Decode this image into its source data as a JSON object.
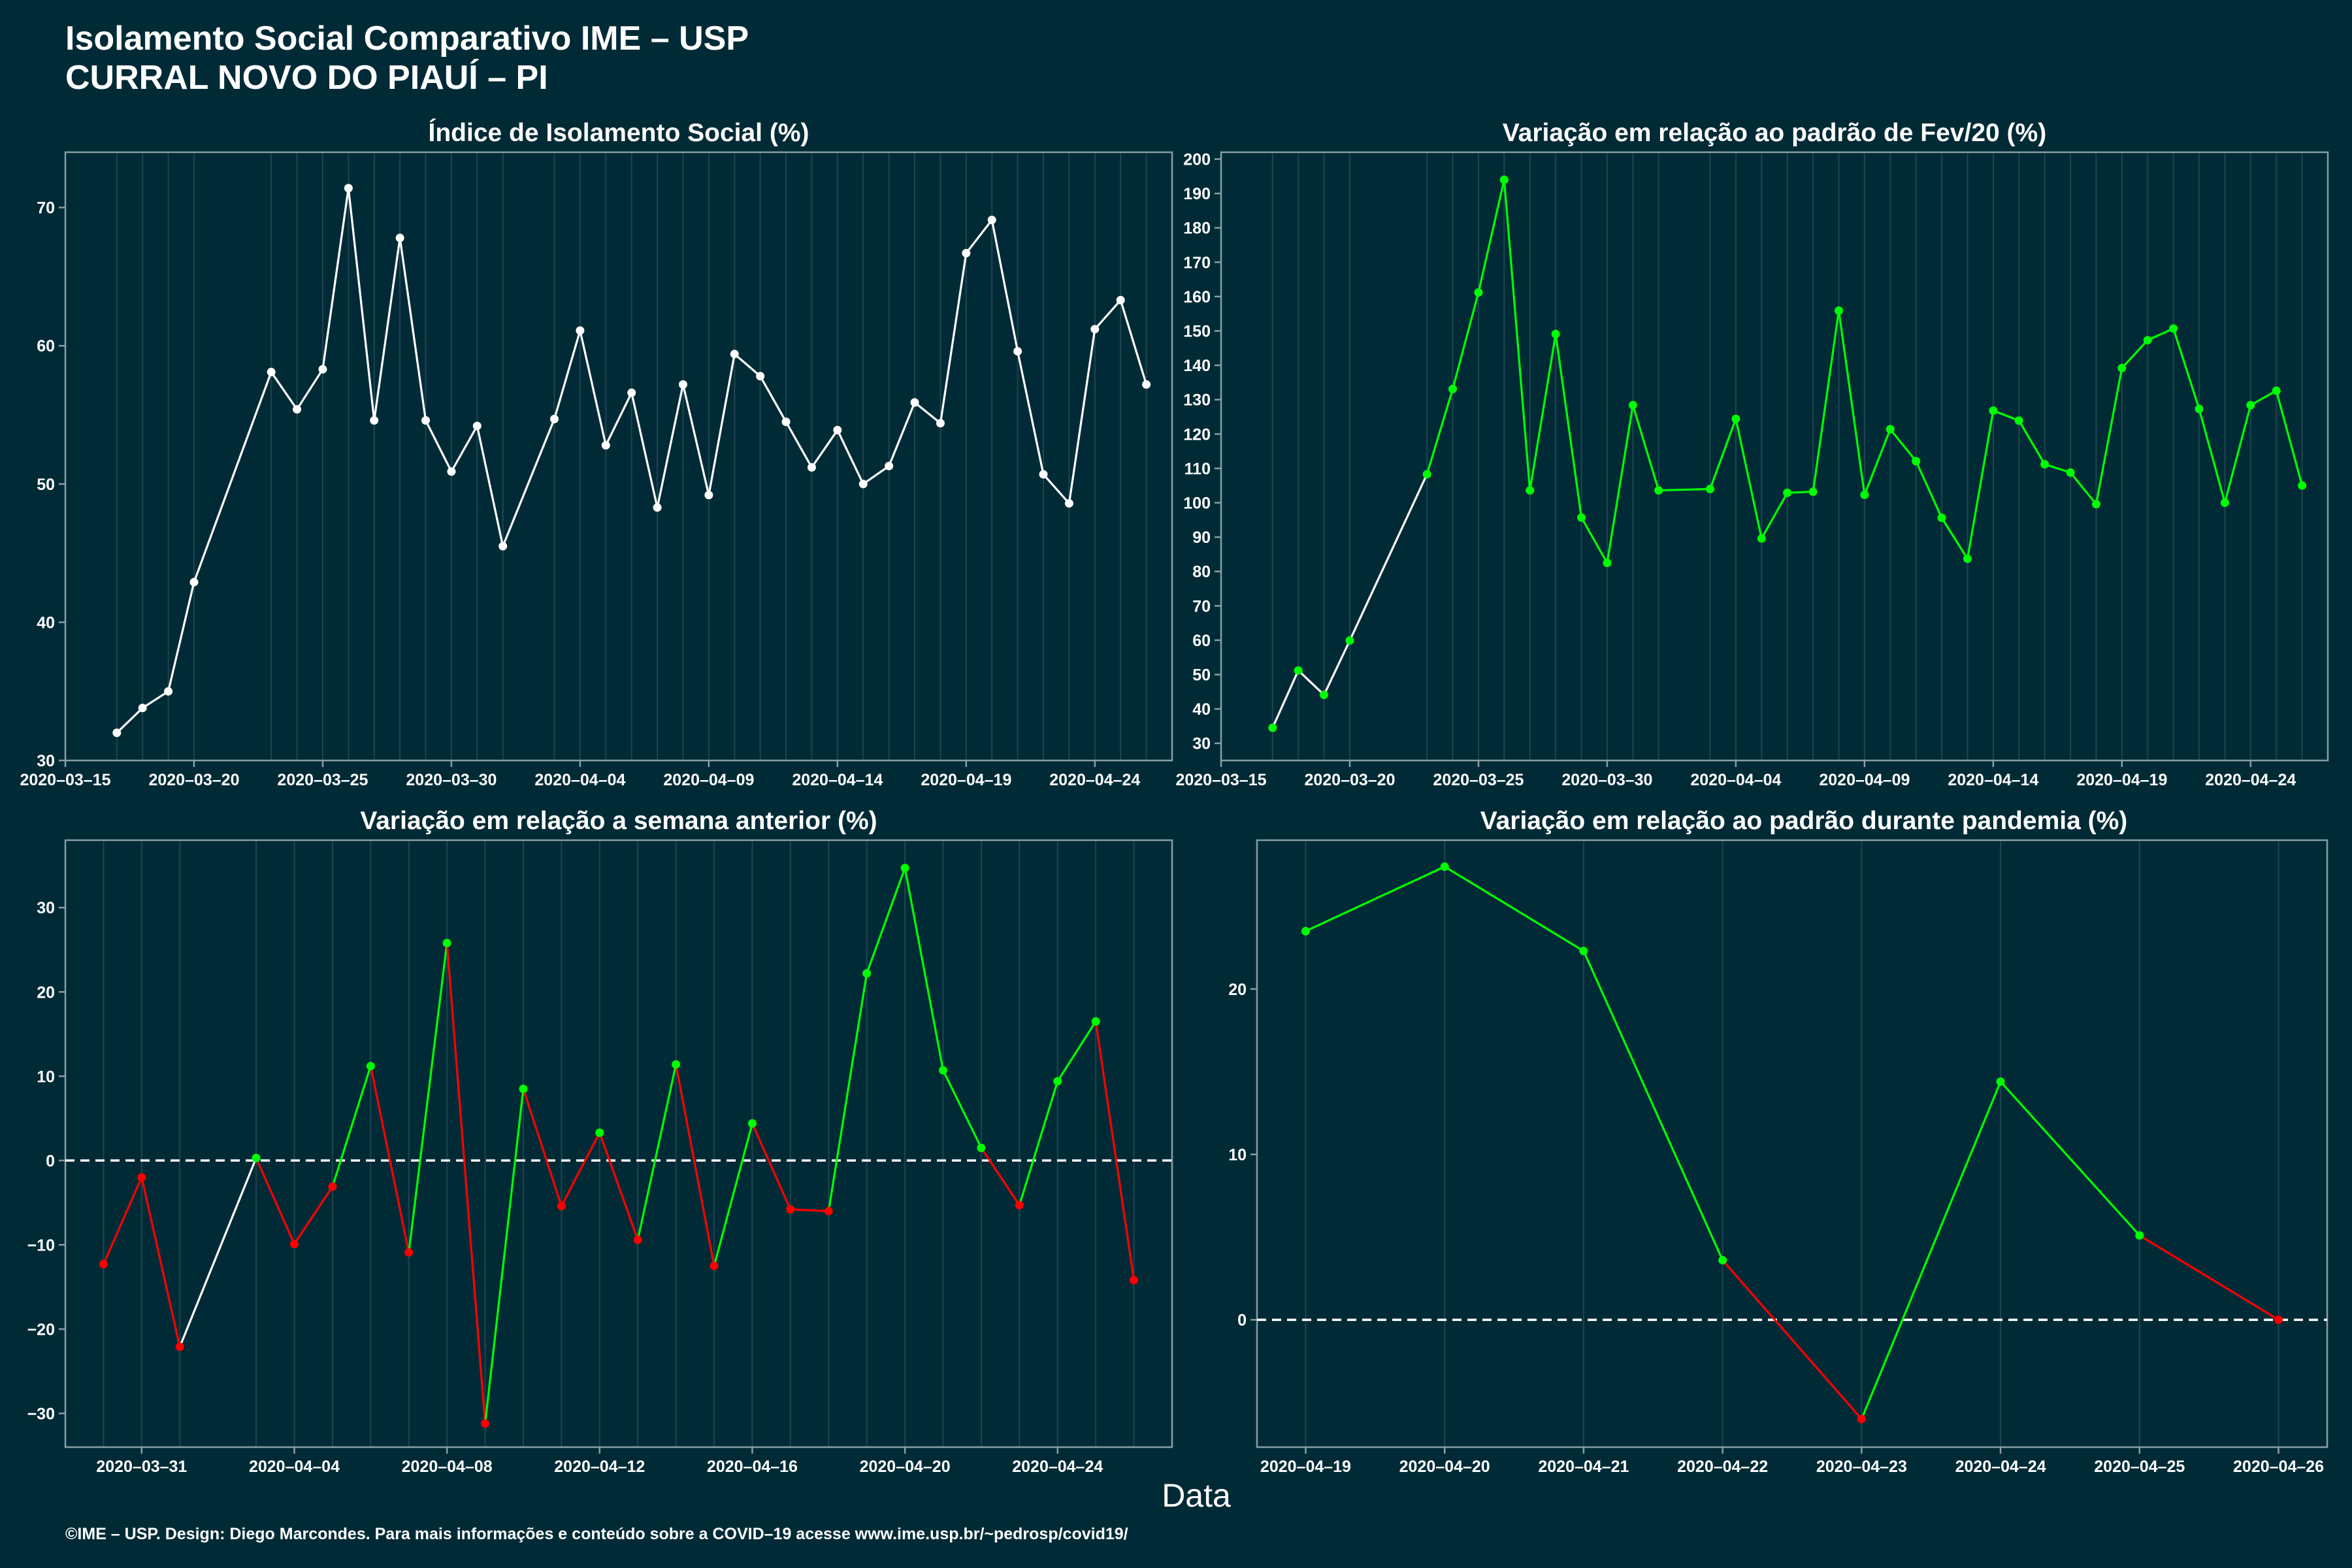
{
  "header": {
    "title_line1": "Isolamento Social Comparativo IME – USP",
    "title_line2": "CURRAL NOVO DO PIAUÍ – PI"
  },
  "footer": {
    "credit": "©IME – USP. Design: Diego Marcondes. Para mais informações e conteúdo sobre a COVID–19 acesse www.ime.usp.br/~pedrosp/covid19/"
  },
  "x_axis_label": "Data",
  "colors": {
    "background": "#002b36",
    "white_series": "#ffffff",
    "increase": "#00ff00",
    "decrease": "#ff0000",
    "reference_line": "#ffffff"
  },
  "chart_data": [
    {
      "id": "isolation",
      "type": "line",
      "title": "Índice de Isolamento Social (%)",
      "xlabel": "",
      "ylabel": "",
      "xlim": [
        "2020-03-15",
        "2020-04-27"
      ],
      "ylim": [
        30,
        74
      ],
      "x_ticks": [
        "2020-03-15",
        "2020-03-20",
        "2020-03-25",
        "2020-03-30",
        "2020-04-04",
        "2020-04-09",
        "2020-04-14",
        "2020-04-19",
        "2020-04-24"
      ],
      "y_ticks": [
        30,
        40,
        50,
        60,
        70
      ],
      "line_color": "#ffffff",
      "point_color": "#ffffff",
      "x": [
        "2020-03-17",
        "2020-03-18",
        "2020-03-19",
        "2020-03-20",
        "2020-03-23",
        "2020-03-24",
        "2020-03-25",
        "2020-03-26",
        "2020-03-27",
        "2020-03-28",
        "2020-03-29",
        "2020-03-30",
        "2020-03-31",
        "2020-04-01",
        "2020-04-03",
        "2020-04-04",
        "2020-04-05",
        "2020-04-06",
        "2020-04-07",
        "2020-04-08",
        "2020-04-09",
        "2020-04-10",
        "2020-04-11",
        "2020-04-12",
        "2020-04-13",
        "2020-04-14",
        "2020-04-15",
        "2020-04-16",
        "2020-04-17",
        "2020-04-18",
        "2020-04-19",
        "2020-04-20",
        "2020-04-21",
        "2020-04-22",
        "2020-04-23",
        "2020-04-24",
        "2020-04-25",
        "2020-04-26"
      ],
      "values": [
        32.0,
        33.8,
        35.0,
        42.9,
        58.1,
        55.4,
        58.3,
        71.4,
        54.6,
        67.8,
        54.6,
        50.9,
        54.2,
        45.5,
        54.7,
        61.1,
        52.8,
        56.6,
        48.3,
        57.2,
        49.2,
        59.4,
        57.8,
        54.5,
        51.2,
        53.9,
        50.0,
        51.3,
        55.9,
        54.4,
        66.7,
        69.1,
        59.6,
        50.7,
        48.6,
        61.2,
        63.3,
        57.2
      ]
    },
    {
      "id": "var-feb",
      "type": "line",
      "title": "Variação em relação ao padrão de Fev/20 (%)",
      "xlabel": "",
      "ylabel": "",
      "xlim": [
        "2020-03-15",
        "2020-04-27"
      ],
      "ylim": [
        25,
        202
      ],
      "x_ticks": [
        "2020-03-15",
        "2020-03-20",
        "2020-03-25",
        "2020-03-30",
        "2020-04-04",
        "2020-04-09",
        "2020-04-14",
        "2020-04-19",
        "2020-04-24"
      ],
      "y_ticks": [
        30,
        40,
        50,
        60,
        70,
        80,
        90,
        100,
        110,
        120,
        130,
        140,
        150,
        160,
        170,
        180,
        190,
        200
      ],
      "point_color": "#00ff00",
      "x": [
        "2020-03-17",
        "2020-03-18",
        "2020-03-19",
        "2020-03-20",
        "2020-03-23",
        "2020-03-24",
        "2020-03-25",
        "2020-03-26",
        "2020-03-27",
        "2020-03-28",
        "2020-03-29",
        "2020-03-30",
        "2020-03-31",
        "2020-04-01",
        "2020-04-03",
        "2020-04-04",
        "2020-04-05",
        "2020-04-06",
        "2020-04-07",
        "2020-04-08",
        "2020-04-09",
        "2020-04-10",
        "2020-04-11",
        "2020-04-12",
        "2020-04-13",
        "2020-04-14",
        "2020-04-15",
        "2020-04-16",
        "2020-04-17",
        "2020-04-18",
        "2020-04-19",
        "2020-04-20",
        "2020-04-21",
        "2020-04-22",
        "2020-04-23",
        "2020-04-24",
        "2020-04-25",
        "2020-04-26"
      ],
      "values": [
        34.5,
        51.2,
        44.1,
        59.9,
        108.3,
        133.1,
        161.2,
        194.0,
        103.6,
        149.1,
        95.7,
        82.5,
        128.4,
        103.6,
        104.0,
        124.4,
        89.6,
        102.9,
        103.2,
        155.9,
        102.3,
        121.4,
        112.1,
        95.6,
        83.7,
        126.8,
        123.9,
        111.2,
        108.8,
        99.6,
        139.2,
        147.3,
        150.7,
        127.3,
        100.0,
        128.4,
        132.6,
        105.0
      ]
    },
    {
      "id": "var-week",
      "type": "line",
      "title": "Variação em relação a semana anterior (%)",
      "xlabel": "",
      "ylabel": "",
      "xlim": [
        "2020-03-29",
        "2020-04-27"
      ],
      "ylim": [
        -34,
        38
      ],
      "x_ticks": [
        "2020-03-31",
        "2020-04-04",
        "2020-04-08",
        "2020-04-12",
        "2020-04-16",
        "2020-04-20",
        "2020-04-24"
      ],
      "y_ticks": [
        -30,
        -20,
        -10,
        0,
        10,
        20,
        30
      ],
      "reference_line": 0,
      "x": [
        "2020-03-30",
        "2020-03-31",
        "2020-04-01",
        "2020-04-03",
        "2020-04-04",
        "2020-04-05",
        "2020-04-06",
        "2020-04-07",
        "2020-04-08",
        "2020-04-09",
        "2020-04-10",
        "2020-04-11",
        "2020-04-12",
        "2020-04-13",
        "2020-04-14",
        "2020-04-15",
        "2020-04-16",
        "2020-04-17",
        "2020-04-18",
        "2020-04-19",
        "2020-04-20",
        "2020-04-21",
        "2020-04-22",
        "2020-04-23",
        "2020-04-24",
        "2020-04-25",
        "2020-04-26"
      ],
      "values": [
        -12.3,
        -2.0,
        -22.1,
        0.3,
        -9.9,
        -3.1,
        11.2,
        -10.9,
        25.8,
        -31.2,
        8.5,
        -5.4,
        3.3,
        -9.4,
        11.4,
        -12.5,
        4.4,
        -5.8,
        -6.0,
        22.2,
        34.7,
        10.7,
        1.5,
        -5.3,
        9.4,
        16.5,
        -14.2
      ],
      "segment_colors": [
        "#ff0000",
        "#ff0000",
        "#ffffff",
        "#ff0000",
        "#ff0000",
        "#00ff00",
        "#ff0000",
        "#00ff00",
        "#ff0000",
        "#00ff00",
        "#ff0000",
        "#ff0000",
        "#ff0000",
        "#00ff00",
        "#ff0000",
        "#00ff00",
        "#ff0000",
        "#ff0000",
        "#00ff00",
        "#00ff00",
        "#00ff00",
        "#00ff00",
        "#ff0000",
        "#00ff00",
        "#00ff00",
        "#ff0000"
      ],
      "point_colors": [
        "#ff0000",
        "#ff0000",
        "#ff0000",
        "#00ff00",
        "#ff0000",
        "#ff0000",
        "#00ff00",
        "#ff0000",
        "#00ff00",
        "#ff0000",
        "#00ff00",
        "#ff0000",
        "#00ff00",
        "#ff0000",
        "#00ff00",
        "#ff0000",
        "#00ff00",
        "#ff0000",
        "#ff0000",
        "#00ff00",
        "#00ff00",
        "#00ff00",
        "#00ff00",
        "#ff0000",
        "#00ff00",
        "#00ff00",
        "#ff0000"
      ]
    },
    {
      "id": "var-pandemic",
      "type": "line",
      "title": "Variação em relação ao padrão durante pandemia (%)",
      "xlabel": "",
      "ylabel": "",
      "xlim": [
        "2020-04-18.65",
        "2020-04-26.35"
      ],
      "ylim": [
        -7.7,
        29.0
      ],
      "x_ticks": [
        "2020-04-19",
        "2020-04-20",
        "2020-04-21",
        "2020-04-22",
        "2020-04-23",
        "2020-04-24",
        "2020-04-25",
        "2020-04-26"
      ],
      "y_ticks": [
        0,
        10,
        20
      ],
      "reference_line": 0,
      "x": [
        "2020-04-19",
        "2020-04-20",
        "2020-04-21",
        "2020-04-22",
        "2020-04-23",
        "2020-04-24",
        "2020-04-25",
        "2020-04-26"
      ],
      "values": [
        23.5,
        27.4,
        22.3,
        3.6,
        -6.0,
        14.4,
        5.1,
        0.0
      ],
      "segment_colors": [
        "#00ff00",
        "#00ff00",
        "#00ff00",
        "#ff0000",
        "#00ff00",
        "#00ff00",
        "#ff0000"
      ],
      "point_colors": [
        "#00ff00",
        "#00ff00",
        "#00ff00",
        "#00ff00",
        "#ff0000",
        "#00ff00",
        "#00ff00",
        "#ff0000"
      ]
    }
  ]
}
